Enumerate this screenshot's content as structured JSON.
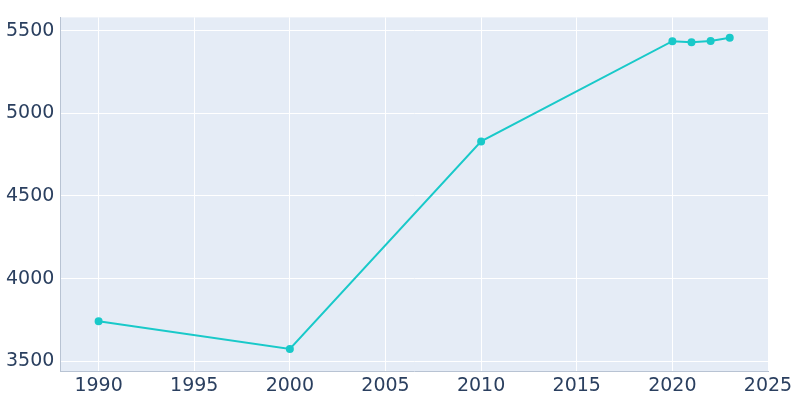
{
  "chart_data": {
    "type": "line",
    "x": [
      1990,
      2000,
      2010,
      2020,
      2021,
      2022,
      2023
    ],
    "values": [
      3742,
      3574,
      4830,
      5436,
      5429,
      5437,
      5457
    ],
    "color": "#19c9c9",
    "marker": "circle",
    "line_style": "solid",
    "xlim": [
      1988,
      2025
    ],
    "xticks": [
      1990,
      1995,
      2000,
      2005,
      2010,
      2015,
      2020,
      2025
    ],
    "ylim": [
      3440,
      5580
    ],
    "yticks": [
      3500,
      4000,
      4500,
      5000,
      5500
    ],
    "grid": true
  }
}
